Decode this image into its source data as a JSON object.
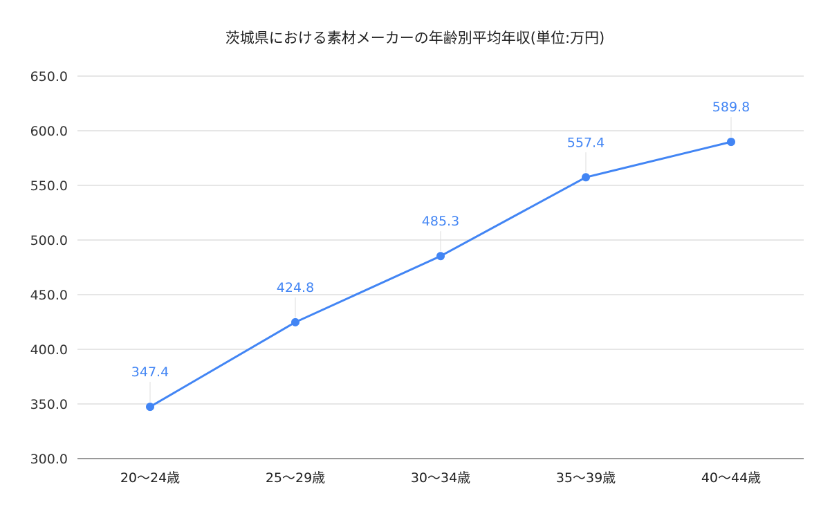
{
  "chart_data": {
    "type": "line",
    "title": "茨城県における素材メーカーの年齢別平均年収(単位:万円)",
    "xlabel": "",
    "ylabel": "",
    "categories": [
      "20〜24歳",
      "25〜29歳",
      "30〜34歳",
      "35〜39歳",
      "40〜44歳"
    ],
    "series": [
      {
        "values": [
          347.4,
          424.8,
          485.3,
          557.4,
          589.8
        ],
        "color": "#4285f4"
      }
    ],
    "data_labels": [
      "347.4",
      "424.8",
      "485.3",
      "557.4",
      "589.8"
    ],
    "ylim": [
      300,
      650
    ],
    "y_ticks": [
      "300.0",
      "350.0",
      "400.0",
      "450.0",
      "500.0",
      "550.0",
      "600.0",
      "650.0"
    ],
    "grid": true,
    "legend": "none",
    "colors": {
      "line": "#4285f4",
      "data_label": "#4285f4",
      "grid": "#cccccc",
      "axis_text": "#333333"
    }
  }
}
